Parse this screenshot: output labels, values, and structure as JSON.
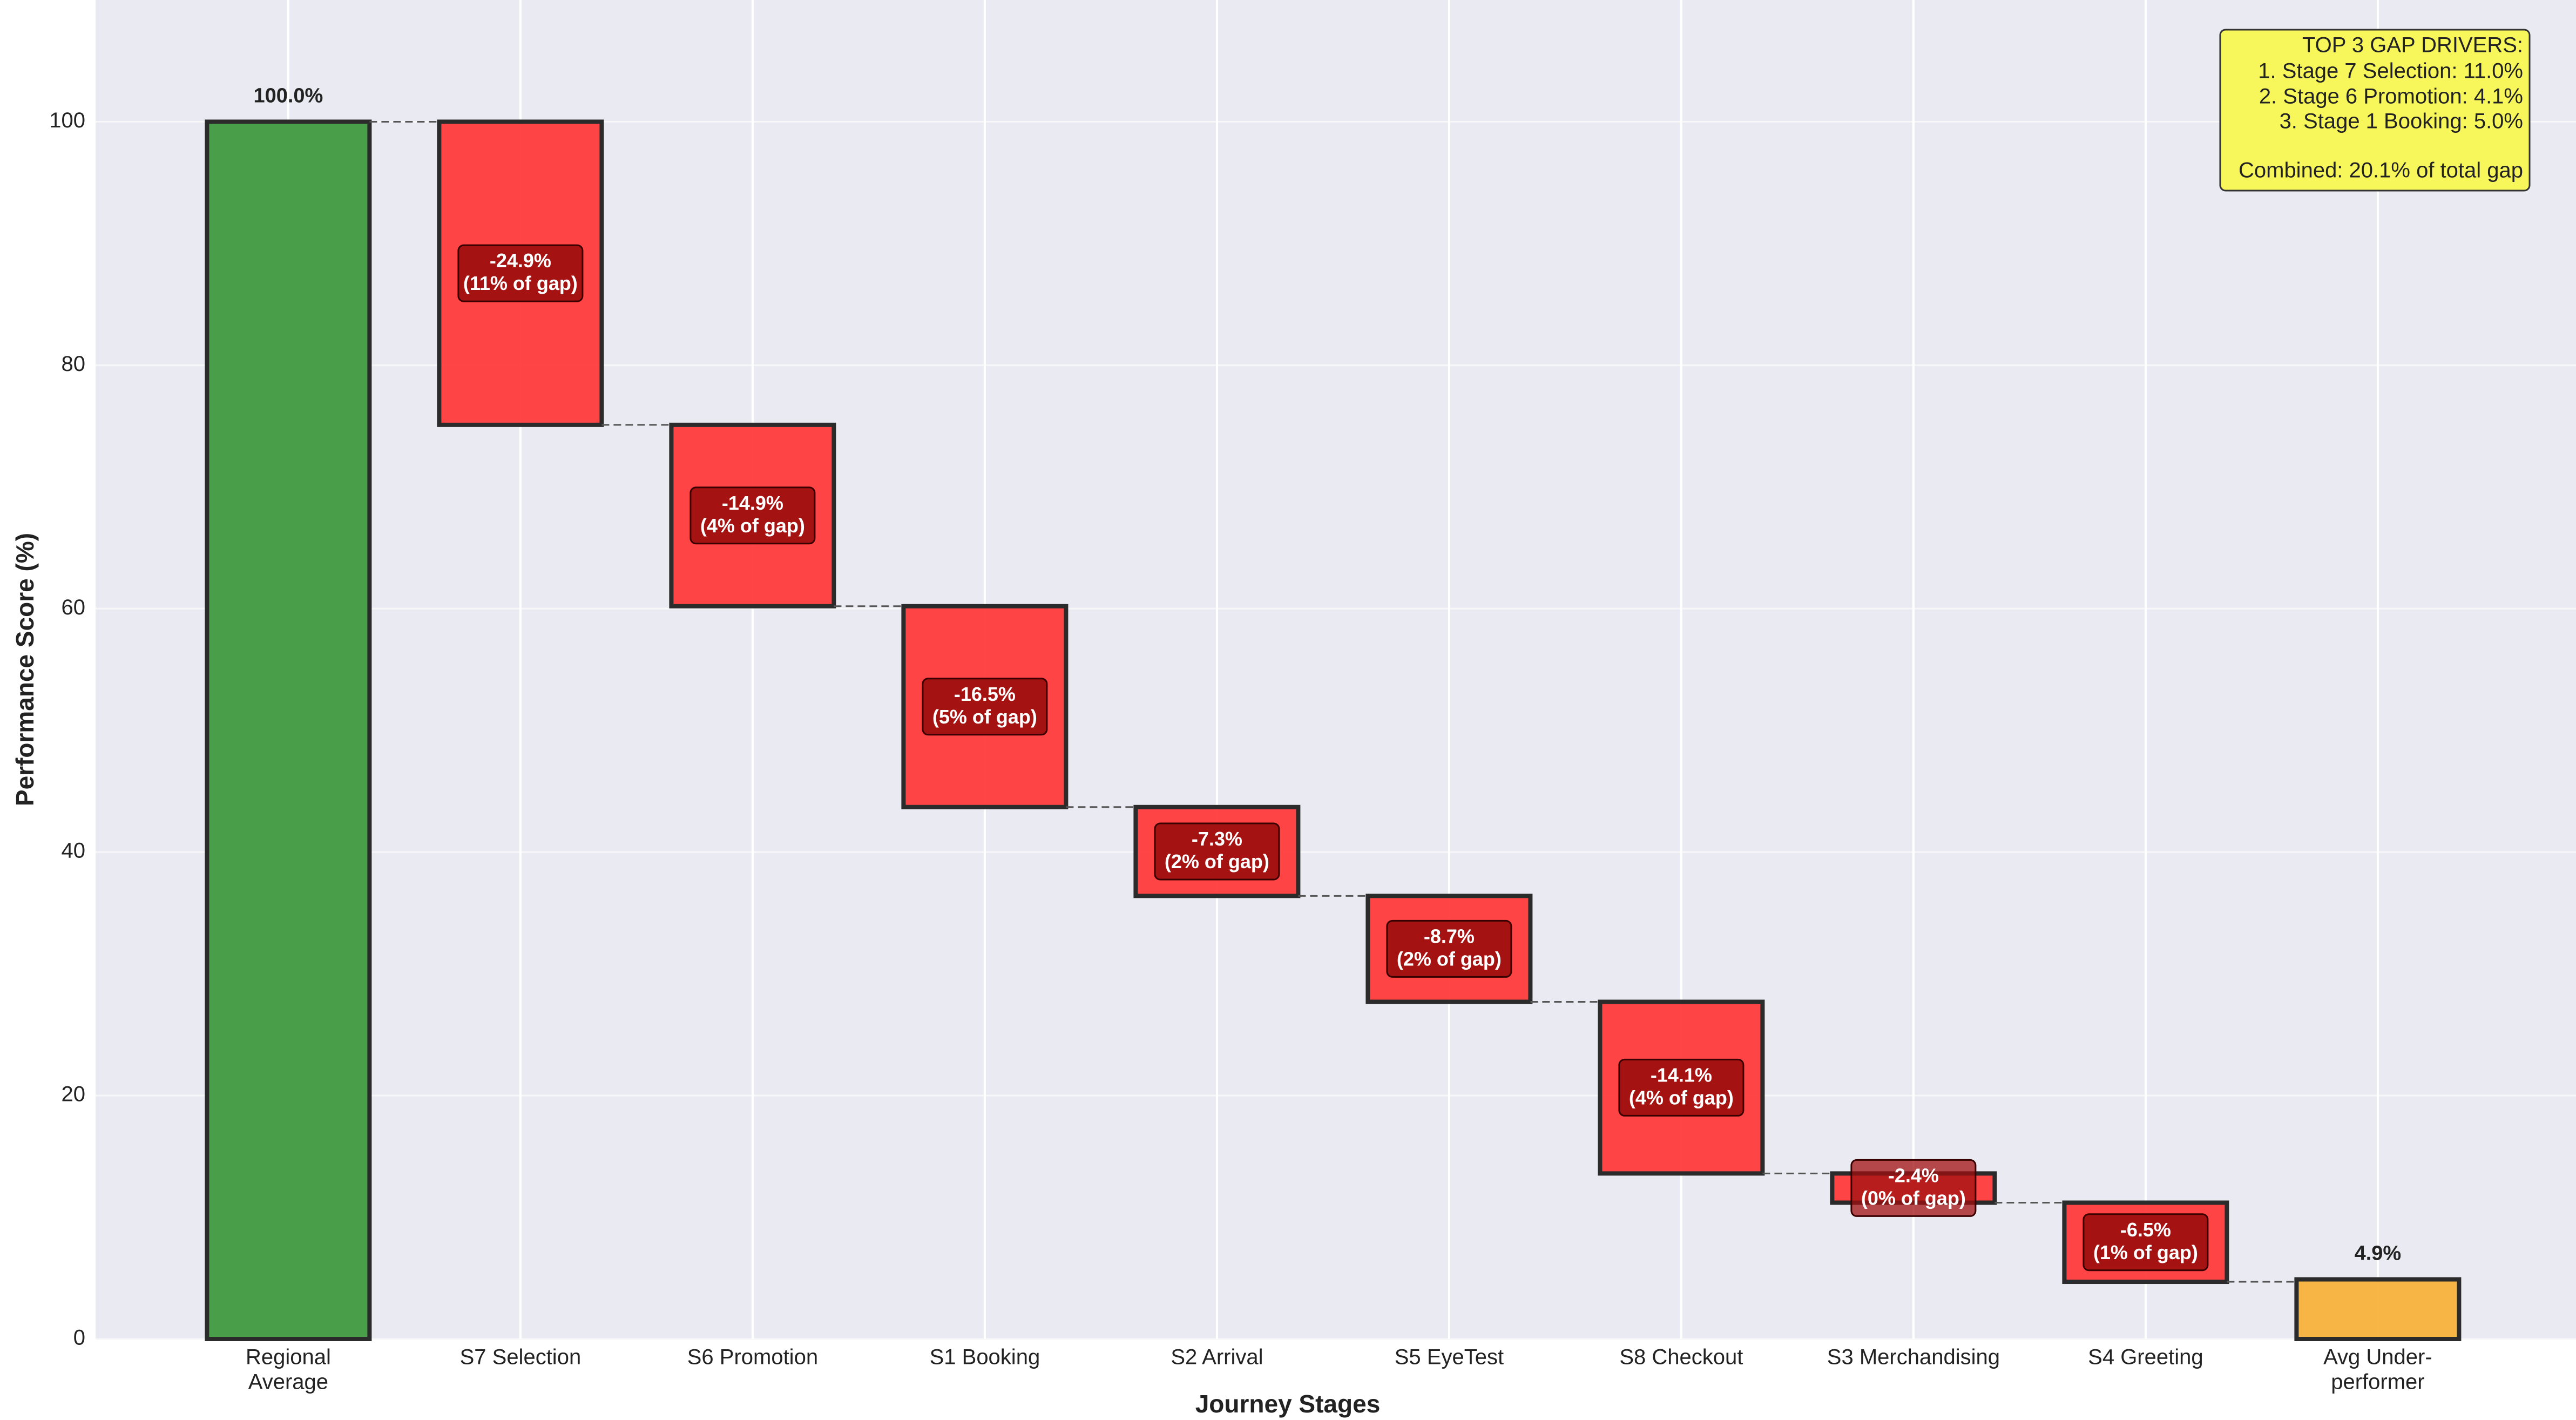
{
  "chart_data": {
    "type": "waterfall",
    "x_label": "Journey Stages",
    "y_label": "Performance Score (%)",
    "categories": [
      [
        "Regional",
        "Average"
      ],
      [
        "S7 Selection"
      ],
      [
        "S6 Promotion"
      ],
      [
        "S1 Booking"
      ],
      [
        "S2 Arrival"
      ],
      [
        "S5 EyeTest"
      ],
      [
        "S8 Checkout"
      ],
      [
        "S3 Merchandising"
      ],
      [
        "S4 Greeting"
      ],
      [
        "Avg Under-",
        "performer"
      ]
    ],
    "values": [
      100,
      -24.9,
      -14.9,
      -16.5,
      -7.3,
      -8.7,
      -14.1,
      -2.4,
      -6.5,
      4.9
    ],
    "value_labels": [
      "100.0%",
      "-24.9%",
      "-14.9%",
      "-16.5%",
      "-7.3%",
      "-8.7%",
      "-14.1%",
      "-2.4%",
      "-6.5%",
      "4.9%"
    ],
    "gap_labels": [
      null,
      "(11% of gap)",
      "(4% of gap)",
      "(5% of gap)",
      "(2% of gap)",
      "(2% of gap)",
      "(4% of gap)",
      "(0% of gap)",
      "(1% of gap)",
      null
    ],
    "colors": {
      "start": "#3f9a3f",
      "decrease": "#ff3b3b",
      "end": "#f7b23b",
      "end_label": "#f59a1c",
      "label_box": "#a01010"
    },
    "ylim": [
      0,
      110
    ],
    "yticks": [
      0,
      20,
      40,
      60,
      80,
      100
    ],
    "grid": true,
    "annotation": {
      "lines": [
        "TOP 3 GAP DRIVERS:",
        "1. Stage 7 Selection: 11.0%",
        "2. Stage 6 Promotion: 4.1%",
        "3. Stage 1 Booking: 5.0%",
        "Combined: 20.1% of total gap"
      ]
    }
  }
}
